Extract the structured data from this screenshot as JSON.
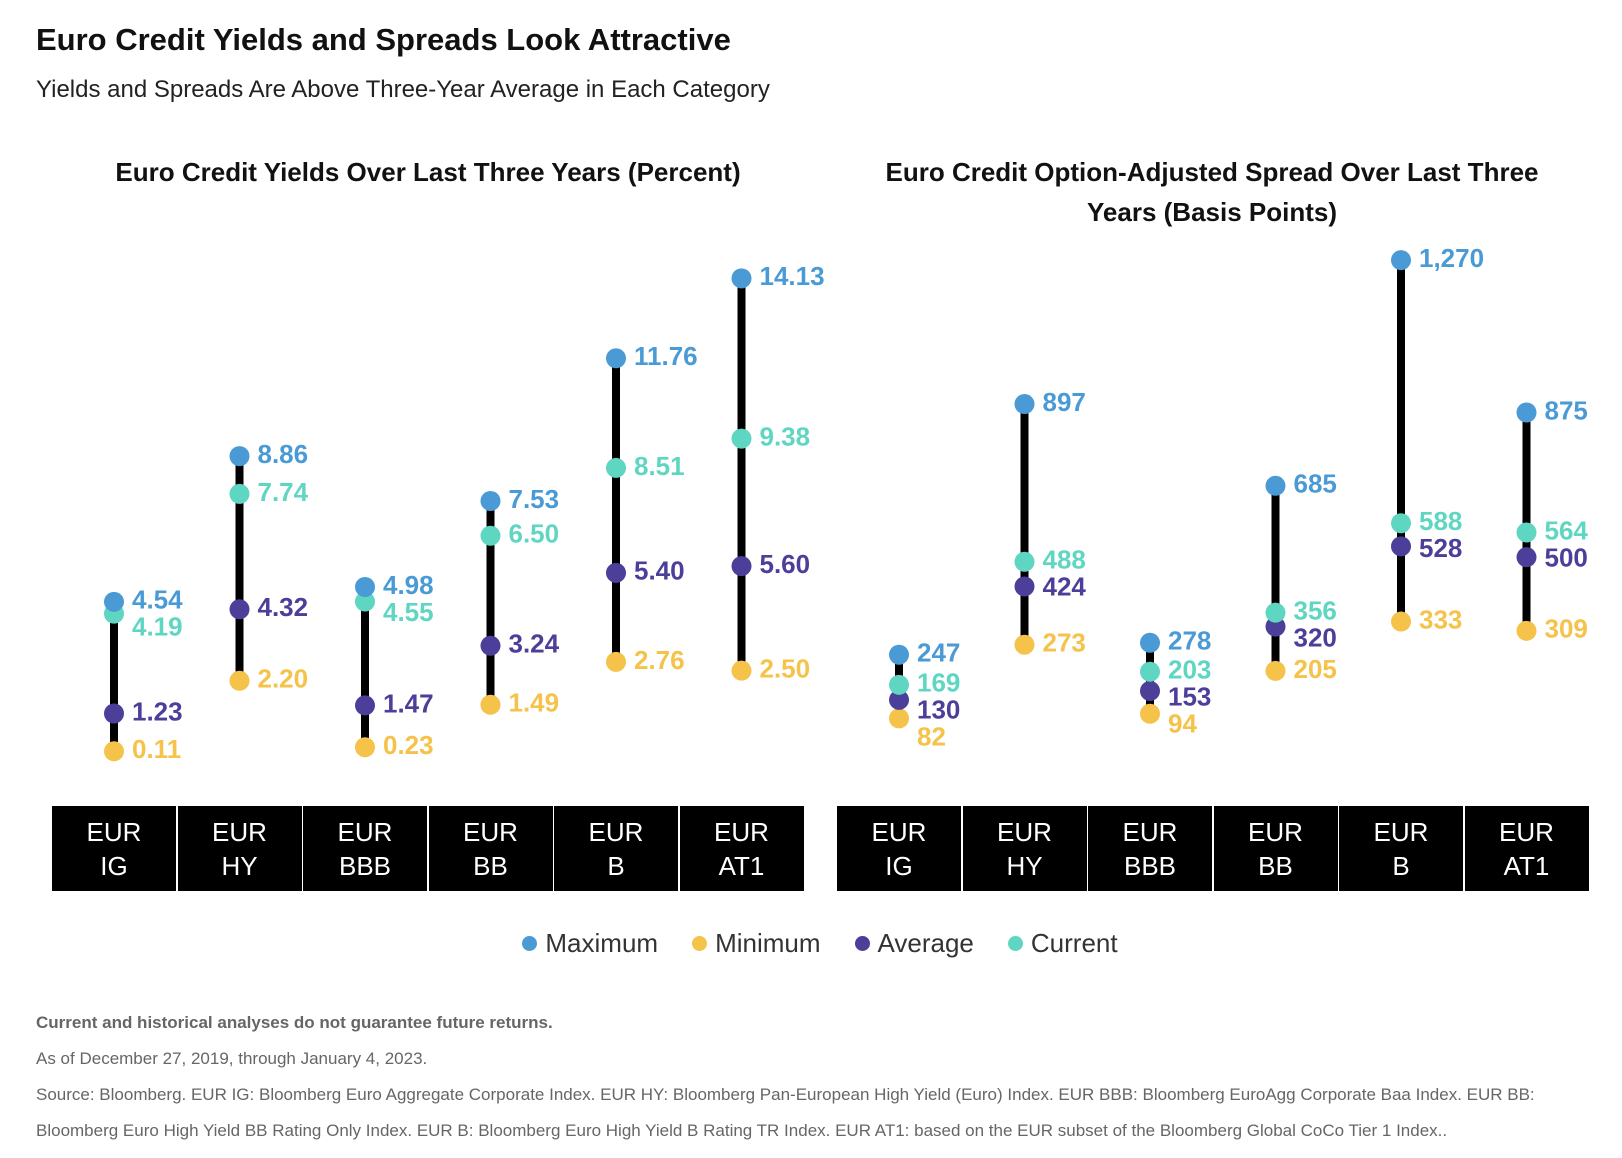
{
  "header": {
    "title": "Euro Credit Yields and Spreads Look Attractive",
    "subtitle": "Yields and Spreads Are Above Three-Year Average in Each Category"
  },
  "chart_data": [
    {
      "type": "dumbbell",
      "title": "Euro Credit Yields Over Last Three Years (Percent)",
      "categories": [
        "EUR IG",
        "EUR HY",
        "EUR BBB",
        "EUR BB",
        "EUR B",
        "EUR AT1"
      ],
      "ylim": [
        0,
        15
      ],
      "series": [
        {
          "name": "Maximum",
          "color": "#4a9ad6",
          "values": [
            4.54,
            8.86,
            4.98,
            7.53,
            11.76,
            14.13
          ],
          "value_labels": [
            "4.54",
            "8.86",
            "4.98",
            "7.53",
            "11.76",
            "14.13"
          ]
        },
        {
          "name": "Minimum",
          "color": "#f5c24a",
          "values": [
            0.11,
            2.2,
            0.23,
            1.49,
            2.76,
            2.5
          ],
          "value_labels": [
            "0.11",
            "2.20",
            "0.23",
            "1.49",
            "2.76",
            "2.50"
          ]
        },
        {
          "name": "Average",
          "color": "#4b3f9a",
          "values": [
            1.23,
            4.32,
            1.47,
            3.24,
            5.4,
            5.6
          ],
          "value_labels": [
            "1.23",
            "4.32",
            "1.47",
            "3.24",
            "5.40",
            "5.60"
          ]
        },
        {
          "name": "Current",
          "color": "#5fd6c1",
          "values": [
            4.19,
            7.74,
            4.55,
            6.5,
            8.51,
            9.38
          ],
          "value_labels": [
            "4.19",
            "7.74",
            "4.55",
            "6.50",
            "8.51",
            "9.38"
          ]
        }
      ]
    },
    {
      "type": "dumbbell",
      "title": "Euro Credit Option-Adjusted Spread Over Last Three Years (Basis Points)",
      "categories": [
        "EUR IG",
        "EUR HY",
        "EUR BBB",
        "EUR BB",
        "EUR B",
        "EUR AT1"
      ],
      "ylim": [
        0,
        1400
      ],
      "series": [
        {
          "name": "Maximum",
          "color": "#4a9ad6",
          "values": [
            247,
            897,
            278,
            685,
            1270,
            875
          ],
          "value_labels": [
            "247",
            "897",
            "278",
            "685",
            "1,270",
            "875"
          ]
        },
        {
          "name": "Minimum",
          "color": "#f5c24a",
          "values": [
            82,
            273,
            94,
            205,
            333,
            309
          ]
        },
        {
          "name": "Average",
          "color": "#4b3f9a",
          "values": [
            130,
            424,
            153,
            320,
            528,
            500
          ]
        },
        {
          "name": "Current",
          "color": "#5fd6c1",
          "values": [
            169,
            488,
            203,
            356,
            588,
            564
          ]
        }
      ]
    }
  ],
  "footnotes": [
    "Current and historical analyses do not guarantee future returns.",
    "As of December 27, 2019, through January 4, 2023.",
    "Source: Bloomberg. EUR IG: Bloomberg Euro Aggregate Corporate Index. EUR HY: Bloomberg Pan-European High Yield (Euro) Index. EUR BBB: Bloomberg EuroAgg Corporate Baa Index. EUR BB: Bloomberg Euro High Yield BB Rating Only Index. EUR B: Bloomberg Euro High Yield B Rating TR Index. EUR AT1: based on the EUR subset of the Bloomberg Global CoCo Tier 1 Index.."
  ]
}
